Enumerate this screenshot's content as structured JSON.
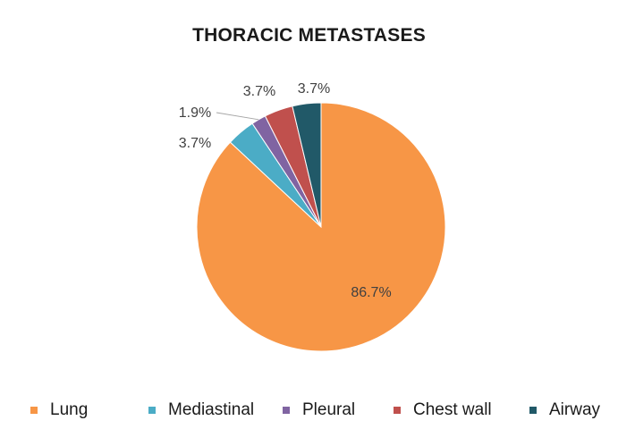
{
  "chart_data": {
    "type": "pie",
    "title": "THORACIC METASTASES",
    "categories": [
      "Lung",
      "Mediastinal",
      "Pleural",
      "Chest wall",
      "Airway"
    ],
    "values": [
      86.7,
      3.7,
      1.9,
      3.7,
      3.7
    ],
    "labels": [
      "86.7%",
      "3.7%",
      "1.9%",
      "3.7%",
      "3.7%"
    ],
    "colors": [
      "#F79646",
      "#4BACC6",
      "#8064A2",
      "#C0504D",
      "#215968"
    ],
    "legend_position": "bottom"
  }
}
